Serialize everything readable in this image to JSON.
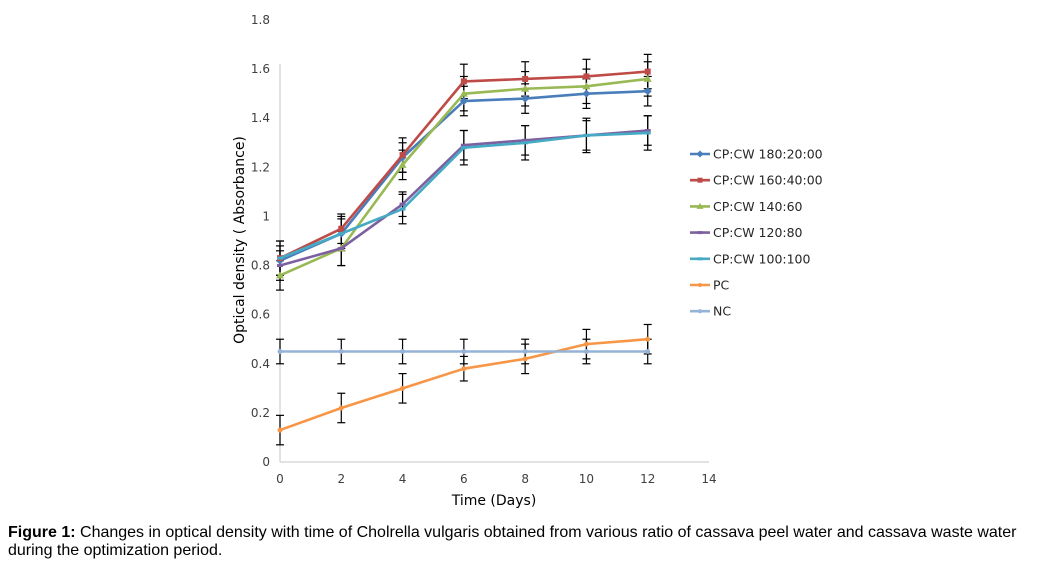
{
  "chart_data": {
    "type": "line",
    "xlabel": "Time (Days)",
    "ylabel": "Optical density ( Absorbance)",
    "xlim": [
      0,
      14
    ],
    "ylim": [
      0,
      1.8
    ],
    "x_ticks": [
      0,
      2,
      4,
      6,
      8,
      10,
      12,
      14
    ],
    "y_ticks": [
      0,
      0.2,
      0.4,
      0.6,
      0.8,
      1,
      1.2,
      1.4,
      1.6,
      1.8
    ],
    "y_tick_labels": [
      "0",
      "0.2",
      "0.4",
      "0.6",
      "0.8",
      "1",
      "1.2",
      "1.4",
      "1.6",
      "1.8"
    ],
    "grid": false,
    "legend_position": "right",
    "x": [
      0,
      2,
      4,
      6,
      8,
      10,
      12
    ],
    "series": [
      {
        "name": "CP:CW 180:20:00",
        "color": "#4a7ebb",
        "marker": "diamond",
        "values": [
          0.82,
          0.93,
          1.24,
          1.47,
          1.48,
          1.5,
          1.51
        ],
        "error": [
          0.06,
          0.06,
          0.06,
          0.06,
          0.06,
          0.06,
          0.06
        ]
      },
      {
        "name": "CP:CW 160:40:00",
        "color": "#be4b48",
        "marker": "square",
        "values": [
          0.83,
          0.95,
          1.25,
          1.55,
          1.56,
          1.57,
          1.59
        ],
        "error": [
          0.07,
          0.06,
          0.07,
          0.07,
          0.07,
          0.07,
          0.07
        ]
      },
      {
        "name": "CP:CW 140:60",
        "color": "#98b954",
        "marker": "triangle",
        "values": [
          0.76,
          0.87,
          1.21,
          1.5,
          1.52,
          1.53,
          1.56
        ],
        "error": [
          0.06,
          0.07,
          0.06,
          0.07,
          0.07,
          0.07,
          0.07
        ]
      },
      {
        "name": "CP:CW 120:80",
        "color": "#7d60a0",
        "marker": "cross",
        "values": [
          0.8,
          0.87,
          1.05,
          1.29,
          1.31,
          1.33,
          1.35
        ],
        "error": [
          0.06,
          0.07,
          0.05,
          0.06,
          0.06,
          0.06,
          0.06
        ]
      },
      {
        "name": "CP:CW 100:100",
        "color": "#46aac5",
        "marker": "cross",
        "values": [
          0.83,
          0.93,
          1.03,
          1.28,
          1.3,
          1.33,
          1.34
        ],
        "error": [
          0.07,
          0.07,
          0.06,
          0.07,
          0.07,
          0.07,
          0.07
        ]
      },
      {
        "name": "PC",
        "color": "#f79646",
        "marker": "circle",
        "values": [
          0.13,
          0.22,
          0.3,
          0.38,
          0.42,
          0.48,
          0.5
        ],
        "error": [
          0.06,
          0.06,
          0.06,
          0.05,
          0.06,
          0.06,
          0.06
        ]
      },
      {
        "name": "NC",
        "color": "#95b3d7",
        "marker": "circle",
        "values": [
          0.45,
          0.45,
          0.45,
          0.45,
          0.45,
          0.45,
          0.45
        ],
        "error": [
          0.05,
          0.05,
          0.05,
          0.05,
          0.05,
          0.05,
          0.05
        ]
      }
    ]
  },
  "caption": {
    "label": "Figure 1:",
    "text": " Changes in optical density with time of Cholrella vulgaris obtained from various ratio of cassava peel water and cassava waste water during the optimization period."
  }
}
